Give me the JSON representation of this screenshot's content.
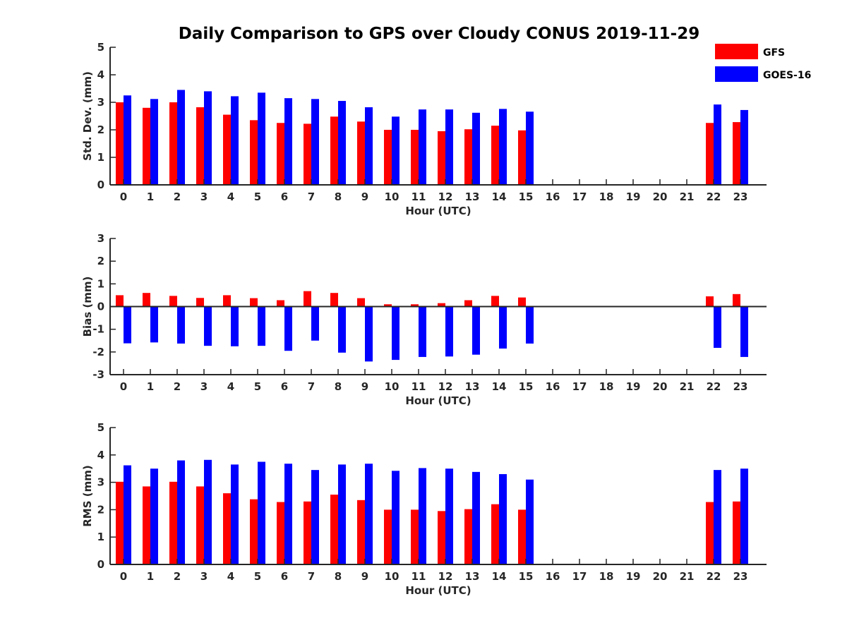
{
  "title": "Daily Comparison to GPS over Cloudy CONUS 2019-11-29",
  "legend": {
    "placement": "top-right",
    "entries": [
      {
        "name": "GFS",
        "color": "#ff0000"
      },
      {
        "name": "GOES-16",
        "color": "#0000ff"
      }
    ]
  },
  "chart_data": [
    {
      "type": "bar",
      "xlabel": "Hour (UTC)",
      "ylabel": "Std. Dev. (mm)",
      "ylim": [
        0,
        5
      ],
      "yticks": [
        0,
        1,
        2,
        3,
        4,
        5
      ],
      "categories": [
        "0",
        "1",
        "2",
        "3",
        "4",
        "5",
        "6",
        "7",
        "8",
        "9",
        "10",
        "11",
        "12",
        "13",
        "14",
        "15",
        "16",
        "17",
        "18",
        "19",
        "20",
        "21",
        "22",
        "23"
      ],
      "series": [
        {
          "name": "GFS",
          "color": "#ff0000",
          "values": [
            3.0,
            2.8,
            3.0,
            2.82,
            2.55,
            2.35,
            2.25,
            2.22,
            2.48,
            2.3,
            2.0,
            2.0,
            1.95,
            2.02,
            2.15,
            1.98,
            null,
            null,
            null,
            null,
            null,
            null,
            2.25,
            2.28
          ]
        },
        {
          "name": "GOES-16",
          "color": "#0000ff",
          "values": [
            3.25,
            3.12,
            3.45,
            3.4,
            3.22,
            3.35,
            3.15,
            3.12,
            3.05,
            2.82,
            2.48,
            2.74,
            2.74,
            2.62,
            2.76,
            2.66,
            null,
            null,
            null,
            null,
            null,
            null,
            2.92,
            2.72
          ]
        }
      ]
    },
    {
      "type": "bar",
      "xlabel": "Hour (UTC)",
      "ylabel": "Bias (mm)",
      "ylim": [
        -3,
        3
      ],
      "yticks": [
        -3,
        -2,
        -1,
        0,
        1,
        2,
        3
      ],
      "categories": [
        "0",
        "1",
        "2",
        "3",
        "4",
        "5",
        "6",
        "7",
        "8",
        "9",
        "10",
        "11",
        "12",
        "13",
        "14",
        "15",
        "16",
        "17",
        "18",
        "19",
        "20",
        "21",
        "22",
        "23"
      ],
      "series": [
        {
          "name": "GFS",
          "color": "#ff0000",
          "values": [
            0.5,
            0.6,
            0.47,
            0.38,
            0.5,
            0.37,
            0.28,
            0.68,
            0.6,
            0.37,
            0.1,
            0.1,
            0.15,
            0.28,
            0.47,
            0.4,
            null,
            null,
            null,
            null,
            null,
            null,
            0.45,
            0.55
          ]
        },
        {
          "name": "GOES-16",
          "color": "#0000ff",
          "values": [
            -1.62,
            -1.58,
            -1.63,
            -1.73,
            -1.75,
            -1.73,
            -1.95,
            -1.5,
            -2.03,
            -2.42,
            -2.35,
            -2.22,
            -2.2,
            -2.12,
            -1.85,
            -1.63,
            null,
            null,
            null,
            null,
            null,
            null,
            -1.82,
            -2.22
          ]
        }
      ]
    },
    {
      "type": "bar",
      "xlabel": "Hour (UTC)",
      "ylabel": "RMS (mm)",
      "ylim": [
        0,
        5
      ],
      "yticks": [
        0,
        1,
        2,
        3,
        4,
        5
      ],
      "categories": [
        "0",
        "1",
        "2",
        "3",
        "4",
        "5",
        "6",
        "7",
        "8",
        "9",
        "10",
        "11",
        "12",
        "13",
        "14",
        "15",
        "16",
        "17",
        "18",
        "19",
        "20",
        "21",
        "22",
        "23"
      ],
      "series": [
        {
          "name": "GFS",
          "color": "#ff0000",
          "values": [
            3.02,
            2.85,
            3.02,
            2.85,
            2.6,
            2.38,
            2.28,
            2.3,
            2.55,
            2.35,
            2.0,
            2.0,
            1.95,
            2.02,
            2.2,
            2.0,
            null,
            null,
            null,
            null,
            null,
            null,
            2.28,
            2.3
          ]
        },
        {
          "name": "GOES-16",
          "color": "#0000ff",
          "values": [
            3.62,
            3.5,
            3.8,
            3.82,
            3.65,
            3.75,
            3.68,
            3.45,
            3.65,
            3.68,
            3.42,
            3.52,
            3.5,
            3.38,
            3.3,
            3.1,
            null,
            null,
            null,
            null,
            null,
            null,
            3.45,
            3.5
          ]
        }
      ]
    }
  ]
}
